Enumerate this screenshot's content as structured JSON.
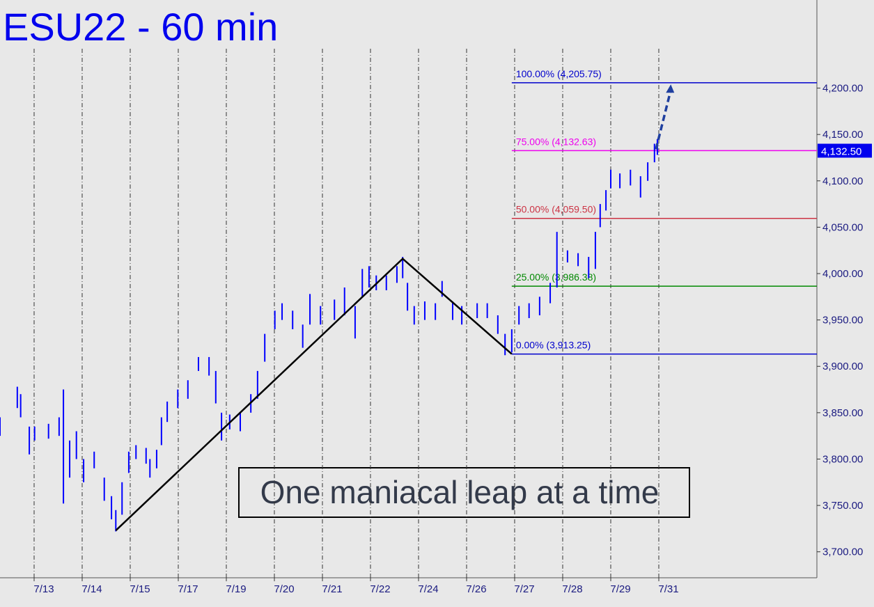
{
  "chart_data": {
    "type": "price-bars",
    "title": "ESU22 - 60 min",
    "annotation": "One maniacal leap at a time",
    "color": "#0000ff",
    "xlim": [
      -0.71,
      16.29
    ],
    "ylim": [
      3672,
      4295
    ],
    "xticks": [
      {
        "value": 0,
        "label": "7/13"
      },
      {
        "value": 1,
        "label": "7/14"
      },
      {
        "value": 2,
        "label": "7/15"
      },
      {
        "value": 3,
        "label": "7/17"
      },
      {
        "value": 4,
        "label": "7/19"
      },
      {
        "value": 5,
        "label": "7/20"
      },
      {
        "value": 6,
        "label": "7/21"
      },
      {
        "value": 7,
        "label": "7/22"
      },
      {
        "value": 8,
        "label": "7/24"
      },
      {
        "value": 9,
        "label": "7/26"
      },
      {
        "value": 10,
        "label": "7/27"
      },
      {
        "value": 11,
        "label": "7/28"
      },
      {
        "value": 12,
        "label": "7/29"
      },
      {
        "value": 13,
        "label": "7/31"
      }
    ],
    "yticks": [
      {
        "value": 3700,
        "label": "3,700.00"
      },
      {
        "value": 3750,
        "label": "3,750.00"
      },
      {
        "value": 3800,
        "label": "3,800.00"
      },
      {
        "value": 3850,
        "label": "3,850.00"
      },
      {
        "value": 3900,
        "label": "3,900.00"
      },
      {
        "value": 3950,
        "label": "3,950.00"
      },
      {
        "value": 4000,
        "label": "4,000.00"
      },
      {
        "value": 4050,
        "label": "4,050.00"
      },
      {
        "value": 4100,
        "label": "4,100.00"
      },
      {
        "value": 4150,
        "label": "4,150.00"
      },
      {
        "value": 4200,
        "label": "4,200.00"
      }
    ],
    "x": [
      -0.71,
      -0.35,
      -0.28,
      -0.1,
      0.01,
      0.3,
      0.52,
      0.61,
      0.74,
      0.88,
      1.03,
      1.25,
      1.46,
      1.61,
      1.7,
      1.83,
      1.97,
      2.12,
      2.33,
      2.41,
      2.55,
      2.65,
      2.77,
      2.99,
      3.2,
      3.42,
      3.64,
      3.78,
      3.9,
      4.07,
      4.29,
      4.51,
      4.65,
      4.8,
      5.01,
      5.16,
      5.38,
      5.59,
      5.74,
      5.96,
      6.25,
      6.46,
      6.68,
      6.83,
      6.97,
      7.12,
      7.33,
      7.55,
      7.67,
      7.77,
      7.91,
      8.13,
      8.35,
      8.49,
      8.71,
      8.9,
      9.22,
      9.43,
      9.65,
      9.8,
      9.94,
      10.09,
      10.3,
      10.52,
      10.74,
      10.88,
      11.1,
      11.32,
      11.54,
      11.68,
      11.78,
      11.9,
      12.0,
      12.19,
      12.41,
      12.62,
      12.77,
      12.91,
      12.97
    ],
    "high": [
      3845,
      3878,
      3870,
      3835,
      3835,
      3838,
      3845,
      3875,
      3820,
      3830,
      3800,
      3808,
      3780,
      3760,
      3745,
      3775,
      3808,
      3815,
      3812,
      3800,
      3810,
      3845,
      3862,
      3875,
      3885,
      3910,
      3910,
      3895,
      3850,
      3848,
      3850,
      3870,
      3895,
      3935,
      3960,
      3968,
      3960,
      3945,
      3978,
      3965,
      3972,
      3985,
      3965,
      4005,
      4008,
      3998,
      3998,
      4008,
      4018,
      3990,
      3965,
      3970,
      3968,
      3992,
      3970,
      3965,
      3968,
      3968,
      3955,
      3935,
      3940,
      3965,
      3968,
      3975,
      3990,
      4045,
      4025,
      4022,
      4018,
      4045,
      4075,
      4090,
      4112,
      4108,
      4112,
      4105,
      4120,
      4140,
      4145
    ],
    "low": [
      3825,
      3855,
      3845,
      3805,
      3820,
      3822,
      3825,
      3752,
      3780,
      3800,
      3775,
      3790,
      3755,
      3735,
      3722,
      3740,
      3785,
      3800,
      3795,
      3780,
      3790,
      3815,
      3840,
      3855,
      3865,
      3895,
      3890,
      3860,
      3820,
      3832,
      3830,
      3850,
      3865,
      3905,
      3940,
      3950,
      3940,
      3920,
      3945,
      3945,
      3950,
      3955,
      3930,
      3975,
      3985,
      3982,
      3982,
      3990,
      3995,
      3960,
      3945,
      3950,
      3950,
      3975,
      3950,
      3945,
      3952,
      3952,
      3935,
      3912,
      3915,
      3945,
      3952,
      3955,
      3968,
      3985,
      4012,
      4008,
      3995,
      4005,
      4050,
      4068,
      4092,
      4092,
      4095,
      4082,
      4100,
      4120,
      4128
    ],
    "swing": {
      "x": [
        1.7,
        7.67,
        9.94
      ],
      "values": [
        3723,
        4016,
        3913.25
      ],
      "color": "#000000"
    },
    "projection": {
      "x": [
        12.94,
        13.25
      ],
      "values": [
        4134,
        4204
      ],
      "color": "#1f3f9f"
    },
    "levels": [
      {
        "value": 4205.75,
        "label": "100.00% (4,205.75)",
        "color": "#0000cc"
      },
      {
        "value": 4132.63,
        "label": "75.00% (4,132.63)",
        "color": "#ee00ee"
      },
      {
        "value": 4059.5,
        "label": "50.00% (4,059.50)",
        "color": "#cc3344"
      },
      {
        "value": 3986.38,
        "label": "25.00% (3,986.38)",
        "color": "#008800"
      },
      {
        "value": 3913.25,
        "label": "0.00% (3,913.25)",
        "color": "#0000cc"
      }
    ],
    "levels_start": 9.94,
    "last_price": {
      "value": 4132.5,
      "label": "4,132.50"
    }
  }
}
